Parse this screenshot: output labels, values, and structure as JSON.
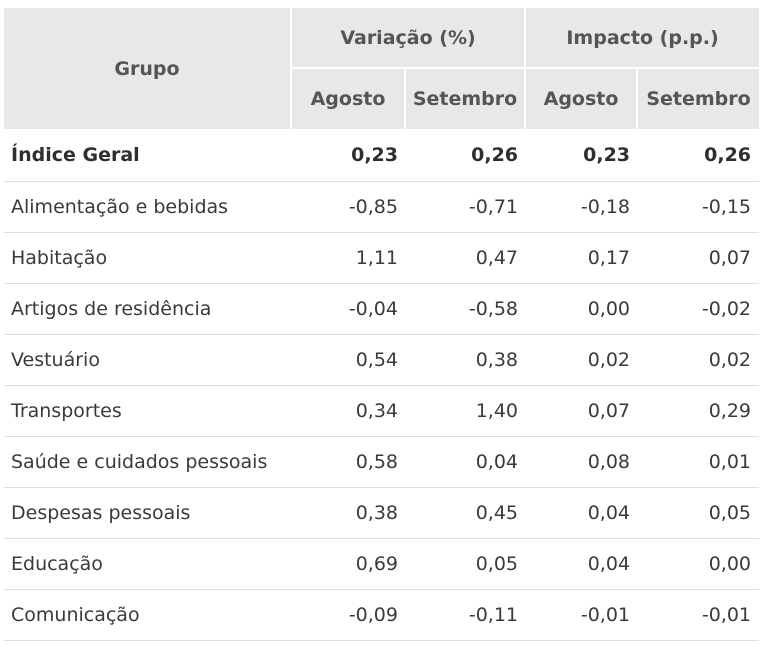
{
  "header": {
    "group_label": "Grupo",
    "variation_label": "Variação (%)",
    "impact_label": "Impacto (p.p.)",
    "months": [
      "Agosto",
      "Setembro",
      "Agosto",
      "Setembro"
    ]
  },
  "rows": [
    {
      "name": "Índice Geral",
      "values": [
        "0,23",
        "0,26",
        "0,23",
        "0,26"
      ]
    },
    {
      "name": "Alimentação e bebidas",
      "values": [
        "-0,85",
        "-0,71",
        "-0,18",
        "-0,15"
      ]
    },
    {
      "name": "Habitação",
      "values": [
        "1,11",
        "0,47",
        "0,17",
        "0,07"
      ]
    },
    {
      "name": "Artigos de residência",
      "values": [
        "-0,04",
        "-0,58",
        "0,00",
        "-0,02"
      ]
    },
    {
      "name": "Vestuário",
      "values": [
        "0,54",
        "0,38",
        "0,02",
        "0,02"
      ]
    },
    {
      "name": "Transportes",
      "values": [
        "0,34",
        "1,40",
        "0,07",
        "0,29"
      ]
    },
    {
      "name": "Saúde e cuidados pessoais",
      "values": [
        "0,58",
        "0,04",
        "0,08",
        "0,01"
      ]
    },
    {
      "name": "Despesas pessoais",
      "values": [
        "0,38",
        "0,45",
        "0,04",
        "0,05"
      ]
    },
    {
      "name": "Educação",
      "values": [
        "0,69",
        "0,05",
        "0,04",
        "0,00"
      ]
    },
    {
      "name": "Comunicação",
      "values": [
        "-0,09",
        "-0,11",
        "-0,01",
        "-0,01"
      ]
    }
  ]
}
